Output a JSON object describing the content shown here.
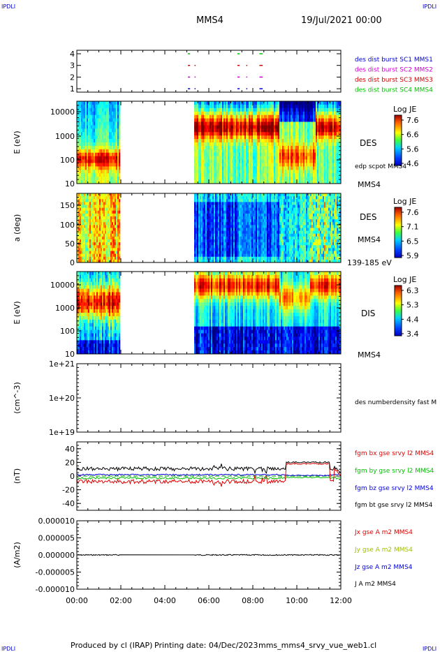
{
  "header": {
    "corner_logo_left": "IPDLI",
    "corner_logo_right": "IPDLI",
    "spacecraft": "MMS4",
    "datetime": "19/Jul/2021 00:00"
  },
  "footer": {
    "producer": "Produced by cl (IRAP)",
    "printing": "Printing date: 04/Dec/2023",
    "script": "mms_mms4_srvy_vue_web1.cl",
    "corner_logo_left": "IPDLI",
    "corner_logo_right": "IPDLI"
  },
  "x_axis": {
    "tick_labels": [
      "00:00",
      "02:00",
      "04:00",
      "06:00",
      "08:00",
      "10:00",
      "12:00"
    ],
    "range_hours": [
      0,
      12
    ]
  },
  "colors": {
    "sc1": "#0000d0",
    "sc2": "#d000d0",
    "sc3": "#d00000",
    "sc4": "#00c000",
    "bx": "#e00000",
    "by": "#00c000",
    "bz": "#0000e0",
    "bt": "#000000"
  },
  "chart_data": [
    {
      "id": "burst-availability",
      "type": "scatter",
      "y_tick_labels": [
        "4",
        "3",
        "2",
        "1"
      ],
      "series": [
        {
          "name": "des dist burst SC1 MMS1",
          "color": "#0000d0",
          "level": 1,
          "segments_hours": [
            [
              5.05,
              5.15
            ],
            [
              5.35,
              5.4
            ],
            [
              7.3,
              7.4
            ],
            [
              7.7,
              7.75
            ],
            [
              8.3,
              8.45
            ]
          ]
        },
        {
          "name": "des dist burst SC2 MMS2",
          "color": "#d000d0",
          "level": 2,
          "segments_hours": [
            [
              5.05,
              5.15
            ],
            [
              5.35,
              5.4
            ],
            [
              7.3,
              7.4
            ],
            [
              7.7,
              7.75
            ],
            [
              8.3,
              8.45
            ]
          ]
        },
        {
          "name": "des dist burst SC3 MMS3",
          "color": "#d00000",
          "level": 3,
          "segments_hours": [
            [
              5.05,
              5.15
            ],
            [
              5.35,
              5.4
            ],
            [
              7.3,
              7.4
            ],
            [
              7.7,
              7.75
            ],
            [
              8.3,
              8.45
            ]
          ]
        },
        {
          "name": "des dist burst SC4 MMS4",
          "color": "#00c000",
          "level": 4,
          "segments_hours": [
            [
              5.05,
              5.15
            ],
            [
              7.3,
              7.4
            ],
            [
              8.3,
              8.45
            ]
          ]
        }
      ]
    },
    {
      "id": "des-energy-spectrogram",
      "type": "heatmap",
      "ylabel": "E (eV)",
      "y_scale": "log",
      "y_tick_labels": [
        "10000",
        "1000",
        "100",
        "10"
      ],
      "ylim": [
        10,
        30000
      ],
      "right_labels": [
        "DES",
        "edp scpot MMS4",
        "MMS4"
      ],
      "colorbar": {
        "title": "Log JE",
        "tick_labels": [
          "7.6",
          "6.6",
          "5.6",
          "4.6"
        ],
        "range": [
          4.6,
          7.8
        ]
      },
      "data_gap_hours": [
        1.95,
        5.3
      ]
    },
    {
      "id": "des-pitch-angle",
      "type": "heatmap",
      "ylabel": "a (deg)",
      "y_tick_labels": [
        "150",
        "100",
        "50",
        "0"
      ],
      "ylim": [
        0,
        180
      ],
      "right_labels": [
        "DES",
        "MMS4",
        "139-185 eV"
      ],
      "colorbar": {
        "title": "Log JE",
        "tick_labels": [
          "7.6",
          "7.1",
          "6.5",
          "5.9"
        ],
        "range": [
          5.9,
          7.7
        ]
      },
      "data_gap_hours": [
        1.95,
        5.3
      ]
    },
    {
      "id": "dis-energy-spectrogram",
      "type": "heatmap",
      "ylabel": "E (eV)",
      "y_scale": "log",
      "y_tick_labels": [
        "10000",
        "1000",
        "100",
        "10"
      ],
      "ylim": [
        10,
        30000
      ],
      "right_labels": [
        "DIS",
        "MMS4"
      ],
      "colorbar": {
        "title": "Log JE",
        "tick_labels": [
          "6.3",
          "5.3",
          "4.4",
          "3.4"
        ],
        "range": [
          3.4,
          6.5
        ]
      },
      "data_gap_hours": [
        1.95,
        5.3
      ]
    },
    {
      "id": "electron-density",
      "type": "line",
      "ylabel": "(cm^-3)",
      "y_scale": "log",
      "y_tick_labels": [
        "1e+21",
        "1e+20",
        "1e+19"
      ],
      "ylim": [
        1e+19,
        1e+21
      ],
      "series": [
        {
          "name": "des numberdensity fast M",
          "values": []
        }
      ]
    },
    {
      "id": "magnetic-field",
      "type": "line",
      "ylabel": "(nT)",
      "y_tick_labels": [
        "40",
        "20",
        "0",
        "-20",
        "-40"
      ],
      "ylim": [
        -50,
        50
      ],
      "series": [
        {
          "name": "fgm bx gse srvy l2 MMS4",
          "color": "#e00000"
        },
        {
          "name": "fgm by gse srvy l2 MMS4",
          "color": "#00c000"
        },
        {
          "name": "fgm bz gse srvy l2 MMS4",
          "color": "#0000e0"
        },
        {
          "name": "fgm bt gse srvy l2 MMS4",
          "color": "#000000"
        }
      ]
    },
    {
      "id": "current-density",
      "type": "line",
      "ylabel": "(A/m2)",
      "y_tick_labels": [
        "0.000010",
        "0.000005",
        "0.000000",
        "-0.000005",
        "-0.000010"
      ],
      "ylim": [
        -1e-05,
        1e-05
      ],
      "series": [
        {
          "name": "Jx gse A m2 MMS4",
          "color": "#e00000"
        },
        {
          "name": "Jy gse A m2 MMS4",
          "color": "#a0c000"
        },
        {
          "name": "Jz gse A m2 MMS4",
          "color": "#0000e0"
        },
        {
          "name": "J A m2 MMS4",
          "color": "#000000"
        }
      ]
    }
  ]
}
